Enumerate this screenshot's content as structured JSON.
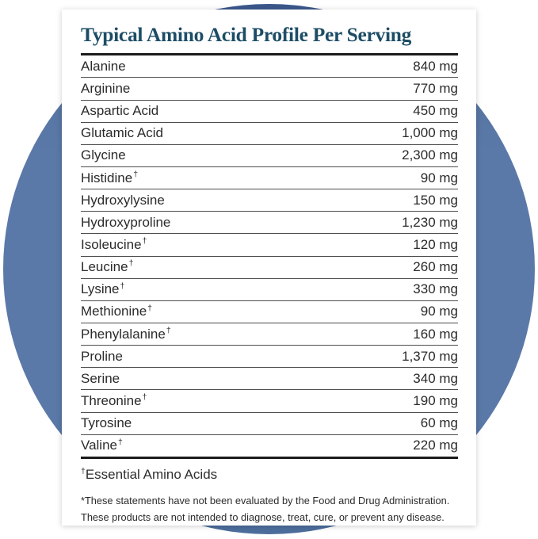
{
  "colors": {
    "circle_blue": "#5b79a8",
    "circle_blue_dark_top": "#3a568a",
    "circle_blue_bottom": "#4c6d9c",
    "title_teal": "#1d4d66",
    "rule_black": "#1b1b1b",
    "row_separator_gray": "#4d4d4d",
    "body_text": "#2b2b2b"
  },
  "header": {
    "title": "Typical Amino Acid Profile Per Serving"
  },
  "table": {
    "dagger": "†",
    "unit": "mg",
    "rows": [
      {
        "name": "Alanine",
        "amount": "840 mg",
        "essential": false
      },
      {
        "name": "Arginine",
        "amount": "770 mg",
        "essential": false
      },
      {
        "name": "Aspartic Acid",
        "amount": "450 mg",
        "essential": false
      },
      {
        "name": "Glutamic Acid",
        "amount": "1,000 mg",
        "essential": false
      },
      {
        "name": "Glycine",
        "amount": "2,300 mg",
        "essential": false
      },
      {
        "name": "Histidine",
        "amount": "90 mg",
        "essential": true
      },
      {
        "name": "Hydroxylysine",
        "amount": "150 mg",
        "essential": false
      },
      {
        "name": "Hydroxyproline",
        "amount": "1,230 mg",
        "essential": false
      },
      {
        "name": "Isoleucine",
        "amount": "120 mg",
        "essential": true
      },
      {
        "name": "Leucine",
        "amount": "260 mg",
        "essential": true
      },
      {
        "name": "Lysine",
        "amount": "330 mg",
        "essential": true
      },
      {
        "name": "Methionine",
        "amount": "90 mg",
        "essential": true
      },
      {
        "name": "Phenylalanine",
        "amount": "160 mg",
        "essential": true
      },
      {
        "name": "Proline",
        "amount": "1,370 mg",
        "essential": false
      },
      {
        "name": "Serine",
        "amount": "340 mg",
        "essential": false
      },
      {
        "name": "Threonine",
        "amount": "190 mg",
        "essential": true
      },
      {
        "name": "Tyrosine",
        "amount": "60 mg",
        "essential": false
      },
      {
        "name": "Valine",
        "amount": "220 mg",
        "essential": true
      }
    ]
  },
  "footnotes": {
    "essential_label": "Essential Amino Acids",
    "disclaimer_line1": "*These statements have not been evaluated by the Food and Drug Administration.",
    "disclaimer_line2": "These products are not intended to diagnose, treat, cure, or prevent any disease."
  }
}
